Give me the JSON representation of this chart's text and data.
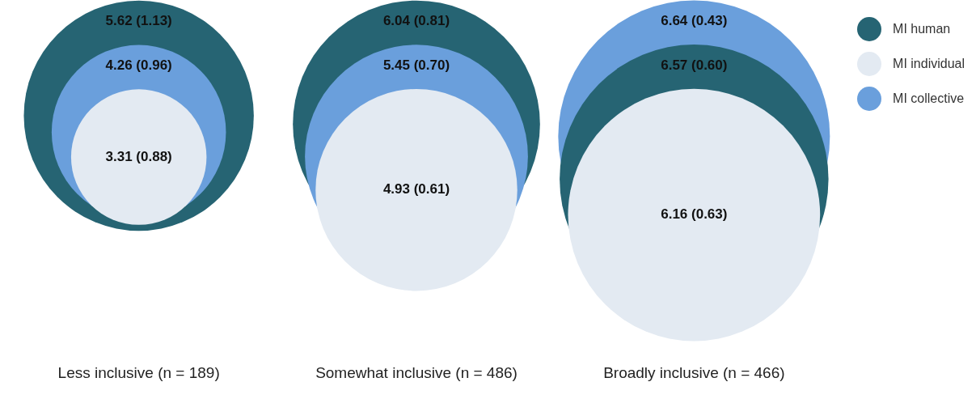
{
  "chart_data": {
    "type": "other",
    "categories": [
      "Less inclusive (n = 189)",
      "Somewhat inclusive (n = 486)",
      "Broadly inclusive (n = 466)"
    ],
    "series": [
      {
        "name": "MI human",
        "color": "#266473",
        "values": [
          5.62,
          6.04,
          6.57
        ],
        "value_labels": [
          "5.62 (1.13)",
          "6.04 (0.81)",
          "6.57 (0.60)"
        ]
      },
      {
        "name": "MI individual",
        "color": "#e3eaf2",
        "values": [
          3.31,
          4.93,
          6.16
        ],
        "value_labels": [
          "3.31 (0.88)",
          "4.93 (0.61)",
          "6.16 (0.63)"
        ]
      },
      {
        "name": "MI collective",
        "color": "#6a9fdc",
        "values": [
          4.26,
          5.45,
          6.64
        ],
        "value_labels": [
          "4.26 (0.96)",
          "5.45 (0.70)",
          "6.64 (0.43)"
        ]
      }
    ],
    "legend": "top right"
  }
}
